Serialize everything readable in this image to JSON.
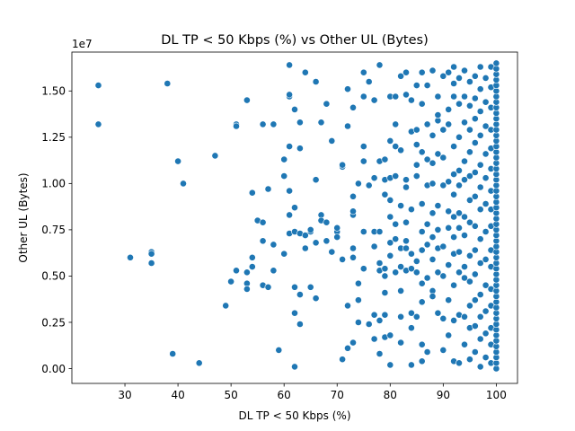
{
  "chart_data": {
    "type": "scatter",
    "title": "DL TP < 50 Kbps (%) vs Other UL (Bytes)",
    "xlabel": "DL TP < 50 Kbps (%)",
    "ylabel": "Other UL (Bytes)",
    "y_offset_label": "1e7",
    "xlim": [
      20,
      104
    ],
    "ylim": [
      -0.08,
      1.71
    ],
    "xticks": [
      30,
      40,
      50,
      60,
      70,
      80,
      90,
      100
    ],
    "yticks": [
      0.0,
      0.25,
      0.5,
      0.75,
      1.0,
      1.25,
      1.5
    ],
    "xtick_labels": [
      "30",
      "40",
      "50",
      "60",
      "70",
      "80",
      "90",
      "100"
    ],
    "ytick_labels": [
      "0.00",
      "0.25",
      "0.50",
      "0.75",
      "1.00",
      "1.25",
      "1.50"
    ],
    "grid": false,
    "legend": "none",
    "marker_color": "#1f77b4",
    "points": [
      [
        25,
        1.53
      ],
      [
        25,
        1.32
      ],
      [
        31,
        0.6
      ],
      [
        35,
        0.63
      ],
      [
        35,
        0.57
      ],
      [
        35,
        0.62
      ],
      [
        38,
        1.54
      ],
      [
        39,
        0.08
      ],
      [
        40,
        1.12
      ],
      [
        41,
        1.0
      ],
      [
        44,
        0.03
      ],
      [
        47,
        1.15
      ],
      [
        49,
        0.34
      ],
      [
        50,
        0.47
      ],
      [
        51,
        0.53
      ],
      [
        51,
        1.32
      ],
      [
        51,
        1.31
      ],
      [
        53,
        0.46
      ],
      [
        53,
        0.43
      ],
      [
        53,
        1.45
      ],
      [
        53,
        0.52
      ],
      [
        54,
        0.6
      ],
      [
        54,
        0.55
      ],
      [
        54,
        0.95
      ],
      [
        55,
        0.8
      ],
      [
        56,
        0.79
      ],
      [
        56,
        0.69
      ],
      [
        56,
        0.45
      ],
      [
        56,
        1.32
      ],
      [
        57,
        0.44
      ],
      [
        57,
        0.97
      ],
      [
        58,
        1.32
      ],
      [
        58,
        0.67
      ],
      [
        58,
        0.53
      ],
      [
        59,
        0.1
      ],
      [
        60,
        0.62
      ],
      [
        60,
        1.13
      ],
      [
        60,
        1.04
      ],
      [
        61,
        0.83
      ],
      [
        61,
        0.96
      ],
      [
        61,
        0.73
      ],
      [
        61,
        1.2
      ],
      [
        61,
        1.47
      ],
      [
        61,
        1.48
      ],
      [
        61,
        1.64
      ],
      [
        62,
        0.87
      ],
      [
        62,
        0.74
      ],
      [
        62,
        0.44
      ],
      [
        62,
        0.3
      ],
      [
        62,
        0.01
      ],
      [
        62,
        1.4
      ],
      [
        63,
        1.33
      ],
      [
        63,
        1.19
      ],
      [
        63,
        0.73
      ],
      [
        63,
        0.4
      ],
      [
        63,
        0.24
      ],
      [
        64,
        0.65
      ],
      [
        64,
        0.72
      ],
      [
        64,
        1.6
      ],
      [
        65,
        0.74
      ],
      [
        65,
        0.75
      ],
      [
        65,
        0.44
      ],
      [
        66,
        1.02
      ],
      [
        66,
        0.68
      ],
      [
        66,
        0.38
      ],
      [
        66,
        1.55
      ],
      [
        67,
        0.83
      ],
      [
        67,
        0.8
      ],
      [
        67,
        1.33
      ],
      [
        68,
        0.69
      ],
      [
        68,
        0.79
      ],
      [
        68,
        1.43
      ],
      [
        69,
        0.63
      ],
      [
        69,
        1.23
      ],
      [
        70,
        0.74
      ],
      [
        70,
        0.71
      ],
      [
        70,
        0.76
      ],
      [
        71,
        0.59
      ],
      [
        71,
        0.05
      ],
      [
        71,
        1.09
      ],
      [
        71,
        1.1
      ],
      [
        72,
        0.34
      ],
      [
        72,
        1.51
      ],
      [
        72,
        1.31
      ],
      [
        72,
        0.11
      ],
      [
        73,
        0.6
      ],
      [
        73,
        0.65
      ],
      [
        73,
        0.83
      ],
      [
        73,
        0.85
      ],
      [
        73,
        0.93
      ],
      [
        73,
        1.41
      ],
      [
        73,
        0.14
      ],
      [
        74,
        0.46
      ],
      [
        74,
        0.37
      ],
      [
        74,
        0.25
      ],
      [
        74,
        1.0
      ],
      [
        75,
        1.12
      ],
      [
        75,
        0.74
      ],
      [
        75,
        1.2
      ],
      [
        75,
        1.47
      ],
      [
        75,
        1.6
      ],
      [
        75,
        0.54
      ],
      [
        76,
        0.99
      ],
      [
        76,
        0.24
      ],
      [
        76,
        1.55
      ],
      [
        77,
        0.16
      ],
      [
        77,
        0.29
      ],
      [
        77,
        0.74
      ],
      [
        77,
        1.03
      ],
      [
        77,
        0.66
      ],
      [
        77,
        1.45
      ],
      [
        78,
        0.53
      ],
      [
        78,
        0.57
      ],
      [
        78,
        0.74
      ],
      [
        78,
        1.12
      ],
      [
        78,
        1.64
      ],
      [
        78,
        0.26
      ],
      [
        78,
        0.08
      ],
      [
        79,
        0.54
      ],
      [
        79,
        0.5
      ],
      [
        79,
        0.41
      ],
      [
        79,
        1.13
      ],
      [
        79,
        1.02
      ],
      [
        79,
        0.94
      ],
      [
        79,
        0.29
      ],
      [
        79,
        0.17
      ],
      [
        80,
        0.68
      ],
      [
        80,
        0.82
      ],
      [
        80,
        0.91
      ],
      [
        80,
        1.23
      ],
      [
        80,
        1.47
      ],
      [
        80,
        1.03
      ],
      [
        80,
        0.18
      ],
      [
        80,
        0.02
      ],
      [
        80,
        0.61
      ],
      [
        81,
        0.52
      ],
      [
        81,
        0.7
      ],
      [
        81,
        0.78
      ],
      [
        81,
        1.04
      ],
      [
        81,
        1.2
      ],
      [
        81,
        1.32
      ],
      [
        81,
        1.47
      ],
      [
        82,
        0.55
      ],
      [
        82,
        0.65
      ],
      [
        82,
        0.88
      ],
      [
        82,
        1.18
      ],
      [
        82,
        0.42
      ],
      [
        82,
        0.28
      ],
      [
        82,
        0.14
      ],
      [
        82,
        1.58
      ],
      [
        83,
        0.53
      ],
      [
        83,
        0.65
      ],
      [
        83,
        0.69
      ],
      [
        83,
        0.79
      ],
      [
        83,
        0.98
      ],
      [
        83,
        1.02
      ],
      [
        83,
        1.48
      ],
      [
        83,
        1.6
      ],
      [
        84,
        0.54
      ],
      [
        84,
        0.62
      ],
      [
        84,
        0.86
      ],
      [
        84,
        1.28
      ],
      [
        84,
        1.45
      ],
      [
        84,
        0.3
      ],
      [
        84,
        0.22
      ],
      [
        84,
        0.02
      ],
      [
        85,
        0.52
      ],
      [
        85,
        0.58
      ],
      [
        85,
        1.04
      ],
      [
        85,
        1.1
      ],
      [
        85,
        1.21
      ],
      [
        85,
        1.29
      ],
      [
        85,
        1.53
      ],
      [
        85,
        0.28
      ],
      [
        86,
        0.36
      ],
      [
        86,
        0.46
      ],
      [
        86,
        0.64
      ],
      [
        86,
        0.74
      ],
      [
        86,
        0.89
      ],
      [
        86,
        1.17
      ],
      [
        86,
        1.43
      ],
      [
        86,
        1.6
      ],
      [
        86,
        0.13
      ],
      [
        86,
        0.04
      ],
      [
        87,
        0.49
      ],
      [
        87,
        0.67
      ],
      [
        87,
        0.78
      ],
      [
        87,
        0.99
      ],
      [
        87,
        1.13
      ],
      [
        87,
        1.32
      ],
      [
        87,
        1.53
      ],
      [
        87,
        0.09
      ],
      [
        88,
        0.42
      ],
      [
        88,
        0.39
      ],
      [
        88,
        0.59
      ],
      [
        88,
        0.71
      ],
      [
        88,
        0.84
      ],
      [
        88,
        1.0
      ],
      [
        88,
        1.26
      ],
      [
        88,
        1.11
      ],
      [
        88,
        1.61
      ],
      [
        89,
        0.3
      ],
      [
        89,
        0.52
      ],
      [
        89,
        0.65
      ],
      [
        89,
        0.75
      ],
      [
        89,
        0.88
      ],
      [
        89,
        1.16
      ],
      [
        89,
        1.34
      ],
      [
        89,
        1.37
      ],
      [
        89,
        1.47
      ],
      [
        90,
        0.1
      ],
      [
        90,
        0.27
      ],
      [
        90,
        0.5
      ],
      [
        90,
        0.66
      ],
      [
        90,
        0.99
      ],
      [
        90,
        1.14
      ],
      [
        90,
        1.29
      ],
      [
        90,
        1.58
      ],
      [
        91,
        0.18
      ],
      [
        91,
        0.37
      ],
      [
        91,
        0.56
      ],
      [
        91,
        0.76
      ],
      [
        91,
        0.85
      ],
      [
        91,
        1.01
      ],
      [
        91,
        1.32
      ],
      [
        91,
        1.4
      ],
      [
        91,
        1.6
      ],
      [
        92,
        0.04
      ],
      [
        92,
        0.26
      ],
      [
        92,
        0.45
      ],
      [
        92,
        0.62
      ],
      [
        92,
        0.71
      ],
      [
        92,
        0.82
      ],
      [
        92,
        0.94
      ],
      [
        92,
        1.05
      ],
      [
        92,
        1.2
      ],
      [
        92,
        1.47
      ],
      [
        92,
        1.54
      ],
      [
        92,
        1.63
      ],
      [
        93,
        0.03
      ],
      [
        93,
        0.29
      ],
      [
        93,
        0.52
      ],
      [
        93,
        0.63
      ],
      [
        93,
        0.76
      ],
      [
        93,
        0.84
      ],
      [
        93,
        0.99
      ],
      [
        93,
        1.07
      ],
      [
        93,
        1.25
      ],
      [
        93,
        1.43
      ],
      [
        93,
        1.57
      ],
      [
        94,
        0.13
      ],
      [
        94,
        0.28
      ],
      [
        94,
        0.49
      ],
      [
        94,
        0.55
      ],
      [
        94,
        0.72
      ],
      [
        94,
        0.82
      ],
      [
        94,
        1.02
      ],
      [
        94,
        1.12
      ],
      [
        94,
        1.33
      ],
      [
        94,
        1.47
      ],
      [
        94,
        1.61
      ],
      [
        95,
        0.05
      ],
      [
        95,
        0.22
      ],
      [
        95,
        0.34
      ],
      [
        95,
        0.47
      ],
      [
        95,
        0.61
      ],
      [
        95,
        0.79
      ],
      [
        95,
        0.91
      ],
      [
        95,
        1.04
      ],
      [
        95,
        1.17
      ],
      [
        95,
        1.29
      ],
      [
        95,
        1.42
      ],
      [
        95,
        1.55
      ],
      [
        96,
        0.09
      ],
      [
        96,
        0.23
      ],
      [
        96,
        0.37
      ],
      [
        96,
        0.51
      ],
      [
        96,
        0.64
      ],
      [
        96,
        0.77
      ],
      [
        96,
        0.93
      ],
      [
        96,
        1.06
      ],
      [
        96,
        1.22
      ],
      [
        96,
        1.35
      ],
      [
        96,
        1.46
      ],
      [
        96,
        1.58
      ],
      [
        97,
        0.01
      ],
      [
        97,
        0.16
      ],
      [
        97,
        0.28
      ],
      [
        97,
        0.4
      ],
      [
        97,
        0.57
      ],
      [
        97,
        0.7
      ],
      [
        97,
        0.86
      ],
      [
        97,
        0.98
      ],
      [
        97,
        1.1
      ],
      [
        97,
        1.26
      ],
      [
        97,
        1.39
      ],
      [
        97,
        1.51
      ],
      [
        97,
        1.63
      ],
      [
        98,
        0.06
      ],
      [
        98,
        0.19
      ],
      [
        98,
        0.31
      ],
      [
        98,
        0.45
      ],
      [
        98,
        0.59
      ],
      [
        98,
        0.74
      ],
      [
        98,
        0.89
      ],
      [
        98,
        1.03
      ],
      [
        98,
        1.16
      ],
      [
        98,
        1.31
      ],
      [
        98,
        1.44
      ],
      [
        98,
        1.57
      ],
      [
        99,
        0.03
      ],
      [
        99,
        0.13
      ],
      [
        99,
        0.22
      ],
      [
        99,
        0.34
      ],
      [
        99,
        0.43
      ],
      [
        99,
        0.55
      ],
      [
        99,
        0.64
      ],
      [
        99,
        0.77
      ],
      [
        99,
        0.86
      ],
      [
        99,
        0.96
      ],
      [
        99,
        1.08
      ],
      [
        99,
        1.19
      ],
      [
        99,
        1.29
      ],
      [
        99,
        1.41
      ],
      [
        99,
        1.52
      ],
      [
        99,
        1.63
      ],
      [
        100,
        0.0
      ],
      [
        100,
        0.03
      ],
      [
        100,
        0.06
      ],
      [
        100,
        0.09
      ],
      [
        100,
        0.12
      ],
      [
        100,
        0.15
      ],
      [
        100,
        0.18
      ],
      [
        100,
        0.21
      ],
      [
        100,
        0.24
      ],
      [
        100,
        0.27
      ],
      [
        100,
        0.3
      ],
      [
        100,
        0.33
      ],
      [
        100,
        0.36
      ],
      [
        100,
        0.39
      ],
      [
        100,
        0.42
      ],
      [
        100,
        0.45
      ],
      [
        100,
        0.48
      ],
      [
        100,
        0.51
      ],
      [
        100,
        0.54
      ],
      [
        100,
        0.57
      ],
      [
        100,
        0.6
      ],
      [
        100,
        0.63
      ],
      [
        100,
        0.66
      ],
      [
        100,
        0.69
      ],
      [
        100,
        0.72
      ],
      [
        100,
        0.75
      ],
      [
        100,
        0.78
      ],
      [
        100,
        0.81
      ],
      [
        100,
        0.84
      ],
      [
        100,
        0.87
      ],
      [
        100,
        0.9
      ],
      [
        100,
        0.93
      ],
      [
        100,
        0.96
      ],
      [
        100,
        0.99
      ],
      [
        100,
        1.02
      ],
      [
        100,
        1.05
      ],
      [
        100,
        1.08
      ],
      [
        100,
        1.11
      ],
      [
        100,
        1.14
      ],
      [
        100,
        1.17
      ],
      [
        100,
        1.2
      ],
      [
        100,
        1.23
      ],
      [
        100,
        1.26
      ],
      [
        100,
        1.29
      ],
      [
        100,
        1.32
      ],
      [
        100,
        1.35
      ],
      [
        100,
        1.38
      ],
      [
        100,
        1.41
      ],
      [
        100,
        1.44
      ],
      [
        100,
        1.47
      ],
      [
        100,
        1.5
      ],
      [
        100,
        1.53
      ],
      [
        100,
        1.56
      ],
      [
        100,
        1.59
      ],
      [
        100,
        1.62
      ],
      [
        100,
        1.65
      ]
    ]
  }
}
